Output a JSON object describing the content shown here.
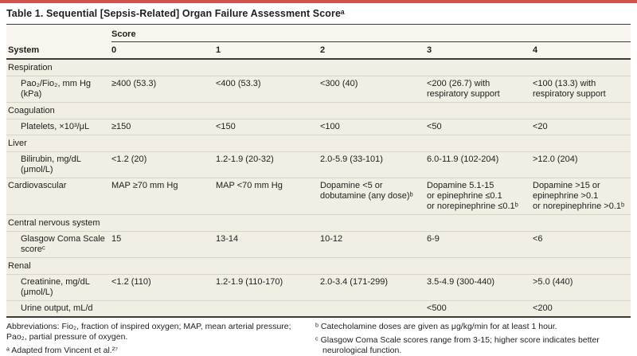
{
  "meta": {
    "accent_red": "#d0534e",
    "body_bg": "#f1eee3",
    "header_bg": "#f7f5ed",
    "rule_dark": "#3a3a37",
    "rule_light": "#d8d5c8"
  },
  "title": "Table 1. Sequential [Sepsis-Related] Organ Failure Assessment Scoreᵃ",
  "table": {
    "header": {
      "score_group": "Score",
      "system": "System",
      "columns": [
        "0",
        "1",
        "2",
        "3",
        "4"
      ]
    },
    "rows": [
      {
        "label": "Respiration"
      },
      {
        "label": "Pao₂/Fio₂, mm Hg\n(kPa)",
        "cells": [
          "≥400 (53.3)",
          "<400 (53.3)",
          "<300 (40)",
          "<200 (26.7) with\nrespiratory support",
          "<100 (13.3) with\nrespiratory support"
        ]
      },
      {
        "label": "Coagulation"
      },
      {
        "label": "Platelets, ×10³/μL",
        "cells": [
          "≥150",
          "<150",
          "<100",
          "<50",
          "<20"
        ]
      },
      {
        "label": "Liver"
      },
      {
        "label": "Bilirubin, mg/dL\n(μmol/L)",
        "cells": [
          "<1.2 (20)",
          "1.2-1.9 (20-32)",
          "2.0-5.9 (33-101)",
          "6.0-11.9 (102-204)",
          ">12.0 (204)"
        ]
      },
      {
        "label": "Cardiovascular",
        "cells": [
          "MAP ≥70 mm Hg",
          "MAP <70 mm Hg",
          "Dopamine <5 or\ndobutamine (any dose)ᵇ",
          "Dopamine 5.1-15\nor epinephrine ≤0.1\nor norepinephrine ≤0.1ᵇ",
          "Dopamine >15 or\nepinephrine >0.1\nor norepinephrine >0.1ᵇ"
        ]
      },
      {
        "label": "Central nervous system"
      },
      {
        "label": "Glasgow Coma Scale\nscoreᶜ",
        "cells": [
          "15",
          "13-14",
          "10-12",
          "6-9",
          "<6"
        ]
      },
      {
        "label": "Renal"
      },
      {
        "label": "Creatinine, mg/dL\n(μmol/L)",
        "cells": [
          "<1.2 (110)",
          "1.2-1.9 (110-170)",
          "2.0-3.4 (171-299)",
          "3.5-4.9 (300-440)",
          ">5.0 (440)"
        ]
      },
      {
        "label": "Urine output, mL/d",
        "cells": [
          "",
          "",
          "",
          "<500",
          "<200"
        ]
      }
    ]
  },
  "footnotes": {
    "abbreviations": "Abbreviations: Fio₂, fraction of inspired oxygen; MAP, mean arterial pressure;\nPao₂, partial pressure of oxygen.",
    "a": "ᵃ Adapted from Vincent et al.²⁷",
    "b": "ᵇ Catecholamine doses are given as μg/kg/min for at least 1 hour.",
    "c": "ᶜ Glasgow Coma Scale scores range from 3-15; higher score indicates better\nneurological function."
  }
}
